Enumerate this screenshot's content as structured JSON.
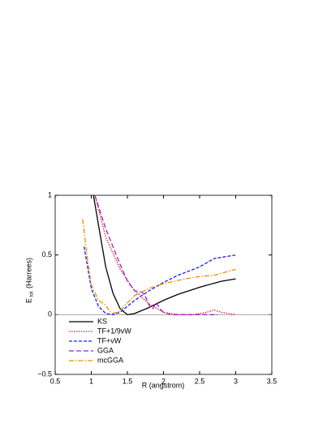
{
  "chart_data": {
    "type": "line",
    "x_label": "R (angstrom)",
    "y_label": "E",
    "y_label_sub": "tot",
    "y_label_rest": "(Harrees)",
    "xlim": [
      0.5,
      3.5
    ],
    "xticks": [
      0.5,
      1,
      1.5,
      2,
      2.5,
      3,
      3.5
    ],
    "ylim": [
      -0.5,
      1
    ],
    "yticks": [
      {
        "value": -0.5,
        "label": "−0.5"
      },
      0,
      0.5,
      1
    ],
    "zero_line": true,
    "legend": "lower-left",
    "series": [
      {
        "name": "KS",
        "color": "#000000",
        "style": "solid",
        "x": [
          1.03,
          1.1,
          1.2,
          1.3,
          1.4,
          1.5,
          1.6,
          1.8,
          2.0,
          2.2,
          2.5,
          2.8,
          3.0
        ],
        "values": [
          1.0,
          0.75,
          0.4,
          0.18,
          0.05,
          0.0,
          0.01,
          0.06,
          0.12,
          0.17,
          0.23,
          0.28,
          0.3
        ]
      },
      {
        "name": "TF+1/9vW",
        "color": "#e02020",
        "style": "dotted",
        "x": [
          1.05,
          1.2,
          1.4,
          1.6,
          1.8,
          2.0,
          2.2,
          2.4,
          2.6,
          2.7,
          2.8,
          3.0
        ],
        "values": [
          1.0,
          0.65,
          0.38,
          0.2,
          0.09,
          0.02,
          0.0,
          0.0,
          0.02,
          0.04,
          0.02,
          0.0
        ]
      },
      {
        "name": "TF+vW",
        "color": "#1a1aff",
        "style": "dashed",
        "x": [
          0.9,
          1.0,
          1.1,
          1.2,
          1.3,
          1.4,
          1.5,
          1.6,
          1.8,
          2.0,
          2.2,
          2.5,
          2.7,
          3.0
        ],
        "values": [
          0.57,
          0.22,
          0.07,
          0.01,
          0.0,
          0.02,
          0.07,
          0.12,
          0.2,
          0.27,
          0.33,
          0.4,
          0.47,
          0.5
        ]
      },
      {
        "name": "GGA",
        "color": "#9a22cc",
        "style": "longdash",
        "x": [
          1.05,
          1.2,
          1.4,
          1.5,
          1.6,
          1.7,
          1.75,
          1.8,
          1.85,
          1.9,
          1.95,
          2.0,
          2.1,
          2.4,
          2.75
        ],
        "values": [
          1.0,
          0.72,
          0.42,
          0.28,
          0.2,
          0.19,
          0.15,
          0.08,
          0.05,
          0.1,
          0.05,
          0.02,
          0.0,
          0.0,
          0.0
        ]
      },
      {
        "name": "mcGGA",
        "color": "#f08c00",
        "style": "dashdot",
        "x": [
          0.88,
          0.95,
          1.0,
          1.1,
          1.2,
          1.25,
          1.3,
          1.4,
          1.5,
          1.6,
          1.8,
          2.0,
          2.3,
          2.5,
          2.7,
          3.0
        ],
        "values": [
          0.8,
          0.45,
          0.25,
          0.12,
          0.08,
          0.03,
          0.01,
          0.03,
          0.1,
          0.16,
          0.22,
          0.26,
          0.3,
          0.32,
          0.33,
          0.38
        ]
      }
    ]
  }
}
